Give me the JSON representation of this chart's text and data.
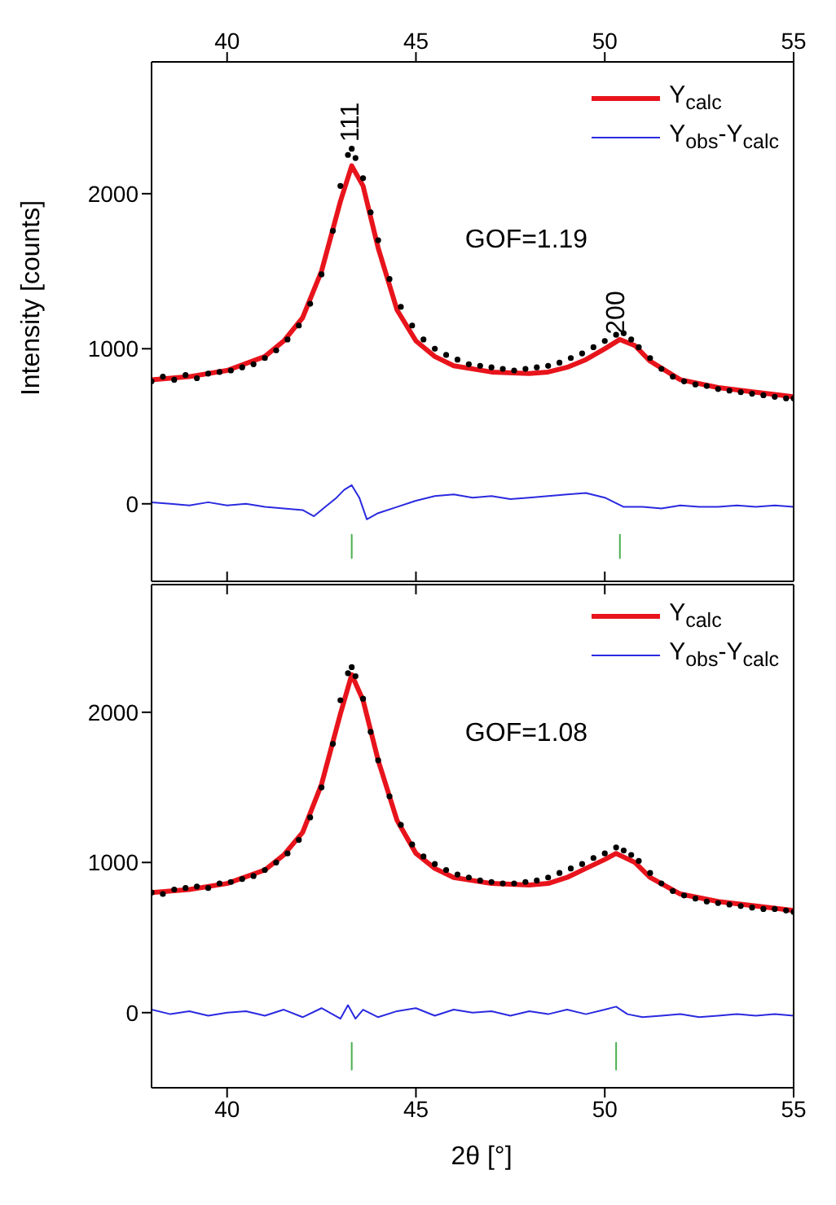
{
  "chart_data": [
    {
      "type": "line",
      "ylabel": "Intensity [counts]",
      "xlim": [
        38,
        55
      ],
      "xticks": [
        40,
        45,
        50,
        55
      ],
      "ylim": [
        -500,
        2850
      ],
      "yticks": [
        0,
        1000,
        2000
      ],
      "legend": "top right",
      "annotations": [
        "111",
        "200",
        "GOF=1.19"
      ],
      "series": [
        {
          "type": "scatter",
          "marker": "circle",
          "color": "#000000",
          "x": [
            38.0,
            38.3,
            38.6,
            38.9,
            39.2,
            39.5,
            39.8,
            40.1,
            40.4,
            40.7,
            41.0,
            41.3,
            41.6,
            41.9,
            42.2,
            42.5,
            42.8,
            43.0,
            43.2,
            43.3,
            43.4,
            43.6,
            43.8,
            44.0,
            44.3,
            44.6,
            44.9,
            45.2,
            45.5,
            45.8,
            46.1,
            46.4,
            46.7,
            47.0,
            47.3,
            47.6,
            47.9,
            48.2,
            48.5,
            48.8,
            49.1,
            49.4,
            49.7,
            50.0,
            50.3,
            50.5,
            50.7,
            50.9,
            51.2,
            51.5,
            51.8,
            52.1,
            52.4,
            52.7,
            53.0,
            53.3,
            53.6,
            53.9,
            54.2,
            54.5,
            54.8,
            55.0
          ],
          "values": [
            790,
            820,
            800,
            830,
            810,
            840,
            850,
            860,
            880,
            900,
            940,
            990,
            1060,
            1150,
            1290,
            1480,
            1760,
            2050,
            2250,
            2290,
            2230,
            2100,
            1880,
            1700,
            1450,
            1270,
            1150,
            1060,
            1000,
            960,
            930,
            900,
            890,
            880,
            870,
            860,
            870,
            880,
            890,
            910,
            940,
            970,
            1010,
            1050,
            1090,
            1100,
            1060,
            1010,
            940,
            870,
            820,
            790,
            770,
            760,
            740,
            730,
            720,
            710,
            700,
            690,
            680,
            680
          ]
        },
        {
          "name": "Y$_{calc}$",
          "color": "#e8141c",
          "x": [
            38,
            39,
            40,
            41,
            41.5,
            42,
            42.5,
            43,
            43.3,
            43.6,
            44,
            44.5,
            45,
            45.5,
            46,
            47,
            48,
            48.5,
            49,
            49.5,
            50,
            50.4,
            50.8,
            51.2,
            52,
            53,
            54,
            55
          ],
          "values": [
            800,
            820,
            860,
            950,
            1050,
            1200,
            1500,
            1950,
            2180,
            2050,
            1650,
            1250,
            1050,
            950,
            890,
            850,
            840,
            850,
            880,
            930,
            1000,
            1060,
            1020,
            920,
            800,
            750,
            720,
            690
          ]
        },
        {
          "name": "Y$_{obs}$-Y$_{calc}$",
          "color": "#2a2ae0",
          "x": [
            38,
            38.5,
            39,
            39.5,
            40,
            40.5,
            41,
            41.5,
            42,
            42.3,
            42.6,
            42.9,
            43.1,
            43.3,
            43.5,
            43.7,
            44,
            44.5,
            45,
            45.5,
            46,
            46.5,
            47,
            47.5,
            48,
            48.5,
            49,
            49.5,
            50,
            50.5,
            51,
            51.5,
            52,
            52.5,
            53,
            53.5,
            54,
            54.5,
            55
          ],
          "values": [
            10,
            0,
            -10,
            10,
            -10,
            0,
            -20,
            -30,
            -40,
            -80,
            -20,
            40,
            90,
            120,
            40,
            -100,
            -60,
            -20,
            20,
            50,
            60,
            40,
            50,
            30,
            40,
            50,
            60,
            70,
            40,
            -20,
            -20,
            -30,
            -10,
            -20,
            -20,
            -10,
            -20,
            -10,
            -20
          ]
        },
        {
          "color": "#4caf50",
          "x": [
            43.3,
            43.3,
            null,
            50.4,
            50.4
          ],
          "values": [
            -200,
            -350,
            null,
            -200,
            -350
          ]
        }
      ]
    },
    {
      "type": "line",
      "xlabel": "2θ [°]",
      "xlim": [
        38,
        55
      ],
      "xticks": [
        40,
        45,
        50,
        55
      ],
      "ylim": [
        -500,
        2850
      ],
      "yticks": [
        0,
        1000,
        2000
      ],
      "legend": "top right",
      "annotations": [
        "GOF=1.08"
      ],
      "series": [
        {
          "type": "scatter",
          "marker": "circle",
          "color": "#000000",
          "x": [
            38.0,
            38.3,
            38.6,
            38.9,
            39.2,
            39.5,
            39.8,
            40.1,
            40.4,
            40.7,
            41.0,
            41.3,
            41.6,
            41.9,
            42.2,
            42.5,
            42.8,
            43.0,
            43.2,
            43.3,
            43.4,
            43.6,
            43.8,
            44.0,
            44.3,
            44.6,
            44.9,
            45.2,
            45.5,
            45.8,
            46.1,
            46.4,
            46.7,
            47.0,
            47.3,
            47.6,
            47.9,
            48.2,
            48.5,
            48.8,
            49.1,
            49.4,
            49.7,
            50.0,
            50.3,
            50.5,
            50.7,
            50.9,
            51.2,
            51.5,
            51.8,
            52.1,
            52.4,
            52.7,
            53.0,
            53.3,
            53.6,
            53.9,
            54.2,
            54.5,
            54.8,
            55.0
          ],
          "values": [
            800,
            790,
            820,
            830,
            840,
            830,
            860,
            870,
            890,
            910,
            950,
            1000,
            1060,
            1150,
            1300,
            1500,
            1790,
            2080,
            2260,
            2300,
            2240,
            2090,
            1870,
            1680,
            1440,
            1250,
            1120,
            1040,
            990,
            950,
            920,
            900,
            880,
            870,
            860,
            860,
            870,
            880,
            900,
            930,
            960,
            990,
            1030,
            1060,
            1100,
            1080,
            1050,
            1010,
            930,
            860,
            810,
            780,
            760,
            740,
            730,
            720,
            710,
            700,
            690,
            690,
            680,
            670
          ]
        },
        {
          "name": "Y$_{calc}$",
          "color": "#e8141c",
          "x": [
            38,
            39,
            40,
            41,
            41.5,
            42,
            42.5,
            43,
            43.3,
            43.6,
            44,
            44.5,
            45,
            45.5,
            46,
            47,
            48,
            48.5,
            49,
            49.5,
            50,
            50.3,
            50.8,
            51.2,
            52,
            53,
            54,
            55
          ],
          "values": [
            800,
            820,
            860,
            950,
            1050,
            1200,
            1520,
            1990,
            2250,
            2080,
            1680,
            1280,
            1060,
            960,
            900,
            860,
            850,
            860,
            900,
            960,
            1020,
            1060,
            1000,
            900,
            790,
            740,
            710,
            680
          ]
        },
        {
          "name": "Y$_{obs}$-Y$_{calc}$",
          "color": "#2a2ae0",
          "x": [
            38,
            38.5,
            39,
            39.5,
            40,
            40.5,
            41,
            41.5,
            42,
            42.5,
            43,
            43.2,
            43.4,
            43.6,
            44,
            44.5,
            45,
            45.5,
            46,
            46.5,
            47,
            47.5,
            48,
            48.5,
            49,
            49.5,
            50,
            50.3,
            50.6,
            51,
            51.5,
            52,
            52.5,
            53,
            53.5,
            54,
            54.5,
            55
          ],
          "values": [
            20,
            -10,
            10,
            -20,
            0,
            10,
            -20,
            20,
            -30,
            30,
            -40,
            50,
            -40,
            20,
            -30,
            10,
            30,
            -20,
            20,
            0,
            10,
            -20,
            10,
            -10,
            20,
            -10,
            20,
            40,
            -10,
            -30,
            -20,
            -10,
            -30,
            -20,
            -10,
            -20,
            -10,
            -20
          ]
        },
        {
          "color": "#4caf50",
          "x": [
            43.3,
            43.3,
            null,
            50.3,
            50.3
          ],
          "values": [
            -200,
            -380,
            null,
            -200,
            -380
          ]
        }
      ]
    }
  ]
}
